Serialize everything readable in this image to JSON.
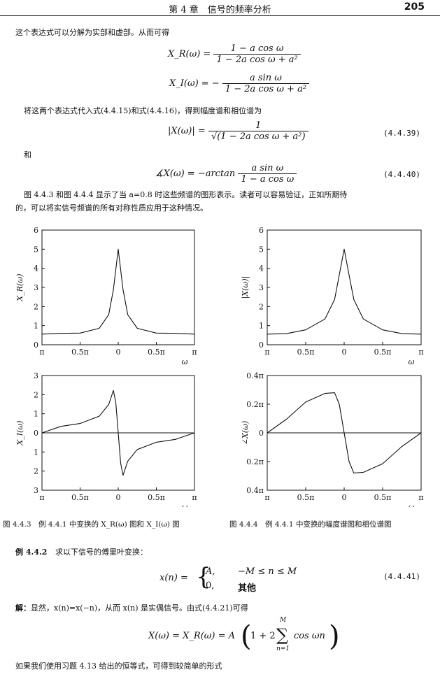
{
  "header": {
    "chapter": "第 4 章　信号的频率分析",
    "page_number": "205"
  },
  "text": {
    "p1": "这个表达式可以分解为实部和虚部。从而可得",
    "p2": "将这两个表达式代入式(4.4.15)和式(4.4.16)，得到幅度谱和相位谱为",
    "he": "和",
    "p3a": "图 4.4.3 和图 4.4.4 显示了当 a=0.8 时这些频谱的图形表示。读者可以容易验证，正如所期待",
    "p3b": "的，可以将实信号频谱的所有对称性质应用于这种情况。",
    "cap1": "图 4.4.3　例 4.4.1 中变换的 X_R(ω) 图和 X_I(ω) 图",
    "cap2": "图 4.4.4　例 4.4.1 中变换的幅度谱图和相位谱图",
    "ex_label": "例 4.4.2",
    "ex_text": "求以下信号的傅里叶变换：",
    "sol_label": "解：",
    "sol_text": "显然，x(n)=x(−n)，从而 x(n) 是实偶信号。由式(4.4.21)可得",
    "p4": "如果我们使用习题 4.13 给出的恒等式，可得到较简单的形式"
  },
  "equations": {
    "xr_lhs": "X_R(ω) =",
    "xr_num": "1 − a cos ω",
    "xr_den": "1 − 2a cos ω + a²",
    "xi_lhs": "X_I(ω) = −",
    "xi_num": "a sin ω",
    "xi_den": "1 − 2a cos ω + a²",
    "mag_lhs": "|X(ω)| =",
    "mag_num": "1",
    "mag_den": "√(1 − 2a cos ω + a²)",
    "mag_no": "(4.4.39)",
    "ph_lhs": "∡X(ω) = −arctan",
    "ph_num": "a sin ω",
    "ph_den": "1 − a cos ω",
    "ph_no": "(4.4.40)",
    "x_lhs": "x(n) =",
    "x_case1_val": "A,",
    "x_case1_cond": "−M ≤ n ≤ M",
    "x_case2_val": "0,",
    "x_case2_cond": "其他",
    "x_no": "(4.4.41)",
    "final_lhs": "X(ω) = X_R(ω) = A",
    "final_1": "1 + 2",
    "final_top": "M",
    "final_bot": "n=1",
    "final_term": "cos ωn"
  },
  "chart_data": [
    {
      "type": "line",
      "title": "",
      "ylabel": "X_R(ω)",
      "xlabel": "ω",
      "xticks": [
        "π",
        "0.5π",
        "0",
        "0.5π",
        "π"
      ],
      "yticks": [
        "0",
        "1",
        "2",
        "3",
        "4",
        "5",
        "6"
      ],
      "xlim": [
        -3.1416,
        3.1416
      ],
      "ylim": [
        0,
        6
      ],
      "x": [
        -3.1416,
        -2.3562,
        -1.5708,
        -0.7854,
        -0.3927,
        -0.1963,
        0,
        0.1963,
        0.3927,
        0.7854,
        1.5708,
        2.3562,
        3.1416
      ],
      "y": [
        0.556,
        0.595,
        0.61,
        0.861,
        1.577,
        2.904,
        5.0,
        2.904,
        1.577,
        0.861,
        0.61,
        0.595,
        0.556
      ]
    },
    {
      "type": "line",
      "title": "",
      "ylabel": "|X(ω)|",
      "xlabel": "ω",
      "xticks": [
        "π",
        "0.5π",
        "0",
        "0.5π",
        "π"
      ],
      "yticks": [
        "0",
        "1",
        "2",
        "3",
        "4",
        "5",
        "6"
      ],
      "xlim": [
        -3.1416,
        3.1416
      ],
      "ylim": [
        0,
        6
      ],
      "x": [
        -3.1416,
        -2.3562,
        -1.5708,
        -0.7854,
        -0.3927,
        -0.1963,
        0,
        0.1963,
        0.3927,
        0.7854,
        1.5708,
        2.3562,
        3.1416
      ],
      "y": [
        0.556,
        0.583,
        0.781,
        1.346,
        2.362,
        3.67,
        5.0,
        3.67,
        2.362,
        1.346,
        0.781,
        0.583,
        0.556
      ]
    },
    {
      "type": "line",
      "title": "",
      "ylabel": "X_I(ω)",
      "xlabel": "ω",
      "xticks": [
        "π",
        "0.5π",
        "0",
        "0.5π",
        "π"
      ],
      "yticks": [
        "3",
        "2",
        "1",
        "0",
        "1",
        "2",
        "3"
      ],
      "xlim": [
        -3.1416,
        3.1416
      ],
      "ylim": [
        -3,
        3
      ],
      "x": [
        -3.1416,
        -2.3562,
        -1.5708,
        -0.7854,
        -0.3927,
        -0.2,
        -0.1,
        0,
        0.1,
        0.2,
        0.3927,
        0.7854,
        1.5708,
        2.3562,
        3.1416
      ],
      "y": [
        0,
        0.34,
        0.49,
        0.87,
        1.48,
        2.22,
        1.6,
        0,
        -1.6,
        -2.22,
        -1.48,
        -0.87,
        -0.49,
        -0.34,
        0
      ]
    },
    {
      "type": "line",
      "title": "",
      "ylabel": "∠X(ω)",
      "xlabel": "ω",
      "xticks": [
        "π",
        "0.5π",
        "0",
        "0.5π",
        "π"
      ],
      "yticks": [
        "0.4π",
        "0.2π",
        "0",
        "0.2π",
        "0.4π"
      ],
      "xlim": [
        -3.1416,
        3.1416
      ],
      "ylim": [
        -0.4,
        0.4
      ],
      "x": [
        -3.1416,
        -2.3562,
        -1.5708,
        -0.7854,
        -0.3927,
        -0.2,
        -0.1,
        0,
        0.1,
        0.2,
        0.3927,
        0.7854,
        1.5708,
        2.3562,
        3.1416
      ],
      "y": [
        0,
        0.095,
        0.215,
        0.275,
        0.28,
        0.2,
        0.1,
        0,
        -0.1,
        -0.2,
        -0.28,
        -0.275,
        -0.215,
        -0.095,
        0
      ]
    }
  ]
}
